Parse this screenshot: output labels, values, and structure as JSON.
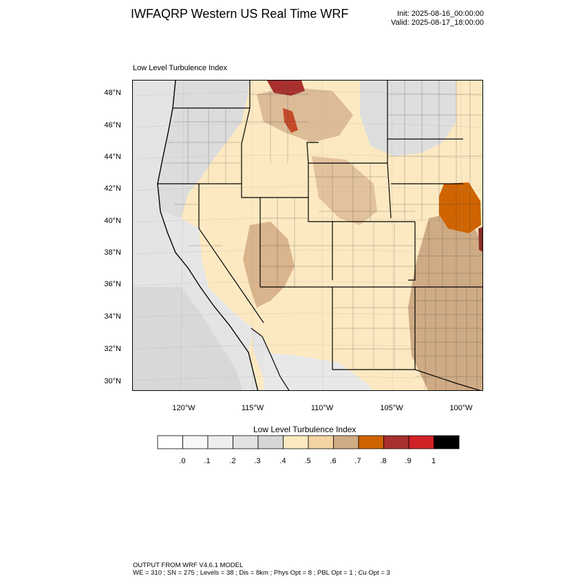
{
  "title": "IWFAQRP Western US Real Time WRF",
  "init_text": "Init: 2025-08-16_00:00:00",
  "valid_text": "Valid: 2025-08-17_18:00:00",
  "plot_label": "Low Level Turbulence Index",
  "map": {
    "lat_range": [
      29.5,
      48.8
    ],
    "lon_range": [
      -123.8,
      -98.5
    ],
    "lat_ticks": [
      "30°N",
      "32°N",
      "34°N",
      "36°N",
      "38°N",
      "40°N",
      "42°N",
      "44°N",
      "46°N",
      "48°N"
    ],
    "lon_ticks": [
      "120°W",
      "115°W",
      "110°W",
      "105°W",
      "100°W"
    ],
    "colors": {
      "ocean": "#e2e2e2",
      "land_default": "#fde9c1",
      "state_border": "#000000",
      "county_border": "#3a3a3a"
    }
  },
  "colorbar": {
    "title": "Low Level Turbulence Index",
    "labels": [
      ".0",
      ".1",
      ".2",
      ".3",
      ".4",
      ".5",
      ".6",
      ".7",
      ".8",
      ".9",
      "1"
    ],
    "colors": [
      "#ffffff",
      "#f7f7f7",
      "#eeeeee",
      "#e2e2e2",
      "#d6d6d6",
      "#fde9c1",
      "#f4d4a3",
      "#cfab84",
      "#cf6400",
      "#a8302e",
      "#d02127",
      "#000000"
    ]
  },
  "footer": {
    "line1": "OUTPUT FROM WRF V4.6.1 MODEL",
    "line2": "WE = 310 ; SN = 275 ; Levels = 38 ; Dis = 8km ; Phys Opt = 8 ; PBL Opt = 1 ; Cu Opt = 3"
  }
}
